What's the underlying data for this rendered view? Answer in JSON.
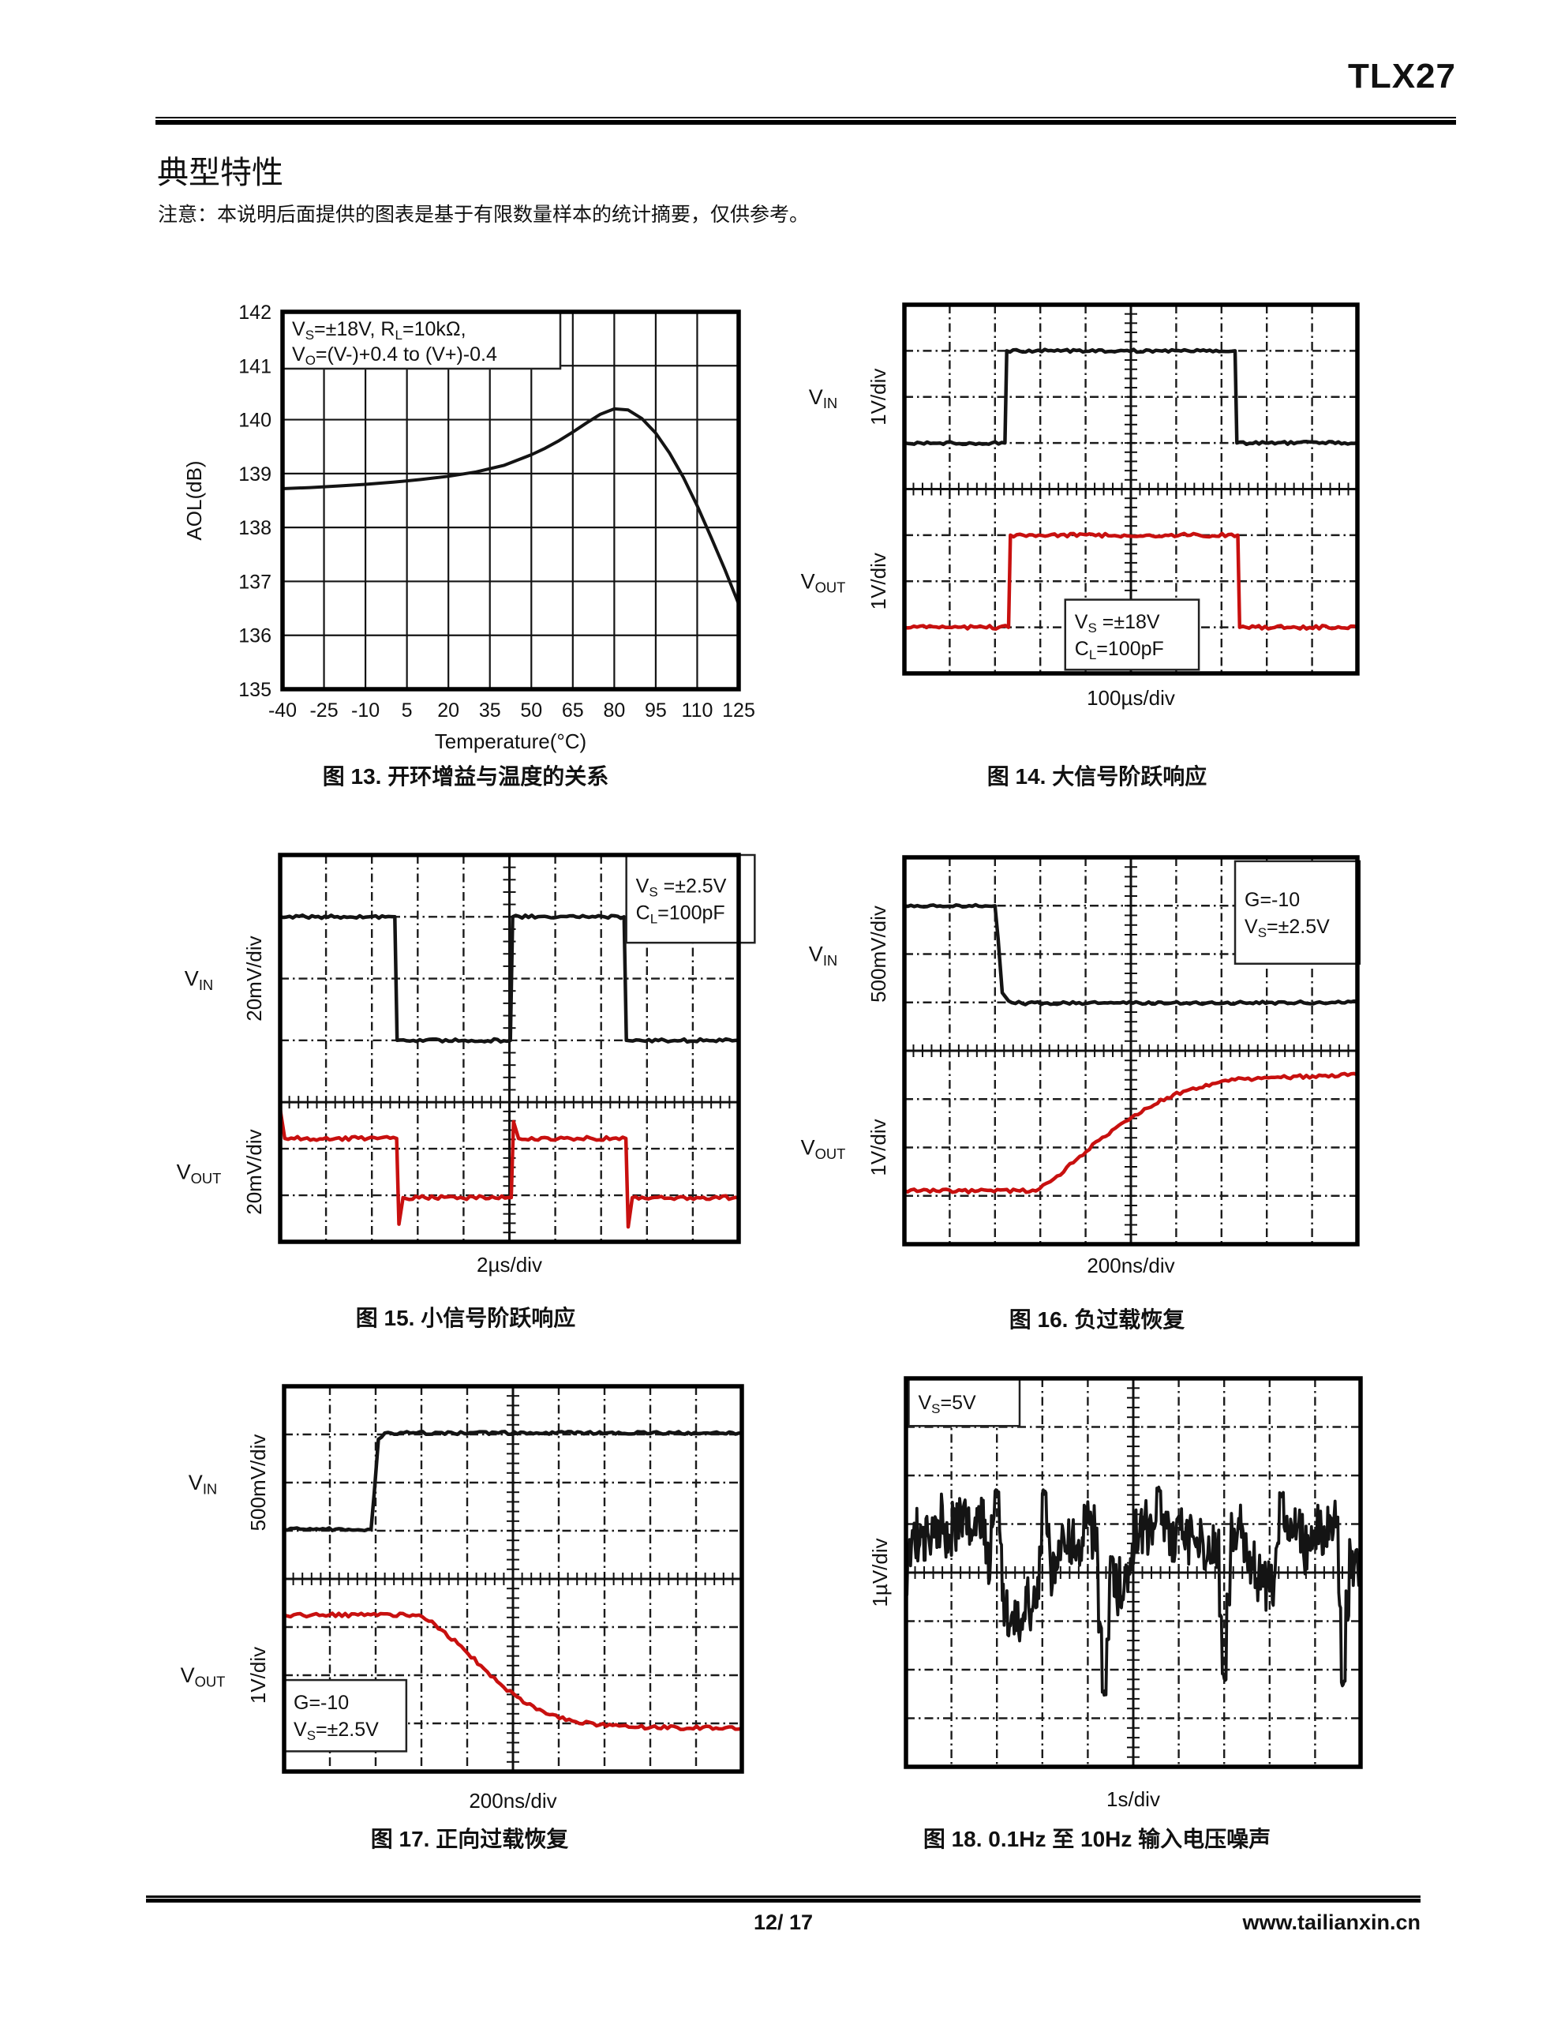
{
  "page": {
    "doc_id": "TLX27",
    "section_title": "典型特性",
    "note": "注意：本说明后面提供的图表是基于有限数量样本的统计摘要，仅供参考。",
    "footer": {
      "page_no": "12/ 17",
      "website": "www.tailianxin.cn"
    }
  },
  "colors": {
    "trace_black": "#141414",
    "trace_red": "#c8100f",
    "grid": "#1b1b1b",
    "accent_rule": "#000000"
  },
  "chart_data": [
    {
      "id": "fig13",
      "type": "line",
      "title": "图 13. 开环增益与温度的关系",
      "xlabel": "Temperature(°C)",
      "ylabel": "AOL(dB)",
      "xlim": [
        -40,
        125
      ],
      "ylim": [
        135,
        142
      ],
      "xticks": [
        -40,
        -25,
        -10,
        5,
        20,
        35,
        50,
        65,
        80,
        95,
        110,
        125
      ],
      "yticks": [
        135,
        136,
        137,
        138,
        139,
        140,
        141,
        142
      ],
      "grid": "solid",
      "annotation": {
        "lines": [
          "V|S|=±18V, R|L|=10kΩ,",
          "V|O|=(V-)+0.4 to (V+)-0.4"
        ],
        "pos": "top-left"
      },
      "series": [
        {
          "name": "AOL",
          "color": "black",
          "x": [
            -40,
            -30,
            -20,
            -10,
            0,
            10,
            20,
            30,
            40,
            50,
            55,
            60,
            65,
            70,
            75,
            80,
            85,
            90,
            95,
            100,
            105,
            110,
            115,
            120,
            125
          ],
          "y": [
            138.72,
            138.74,
            138.77,
            138.8,
            138.84,
            138.89,
            138.95,
            139.03,
            139.15,
            139.35,
            139.47,
            139.61,
            139.77,
            139.94,
            140.1,
            140.2,
            140.18,
            140.02,
            139.75,
            139.38,
            138.93,
            138.4,
            137.82,
            137.22,
            136.58
          ]
        }
      ]
    },
    {
      "id": "fig14",
      "type": "scope",
      "title": "图 14. 大信号阶跃响应",
      "xlabel": "100µs/div",
      "cols": 10,
      "center_col": 5,
      "row_map": {
        "top": 4,
        "bottom": 4,
        "boundary_frac": 0.5
      },
      "labels": [
        {
          "name": "V|IN|",
          "scale": "1V/div",
          "section": "top"
        },
        {
          "name": "V|OUT|",
          "scale": "1V/div",
          "section": "bottom"
        }
      ],
      "annotation": {
        "lines": [
          "V|S| =±18V",
          "C|L|=100pF"
        ],
        "x": [
          3.55,
          6.5
        ],
        "y": [
          6.4,
          7.92
        ]
      },
      "series": [
        {
          "color": "black",
          "noise": 1.8,
          "points": [
            [
              0,
              3
            ],
            [
              2.22,
              3
            ],
            [
              2.26,
              1
            ],
            [
              7.3,
              1
            ],
            [
              7.34,
              3
            ],
            [
              10,
              3
            ]
          ]
        },
        {
          "color": "red",
          "noise": 2.2,
          "points": [
            [
              0,
              7
            ],
            [
              2.3,
              7
            ],
            [
              2.34,
              5
            ],
            [
              7.36,
              5
            ],
            [
              7.4,
              7
            ],
            [
              10,
              7
            ]
          ]
        }
      ]
    },
    {
      "id": "fig15",
      "type": "scope",
      "title": "图 15. 小信号阶跃响应",
      "xlabel": "2µs/div",
      "cols": 10,
      "center_col": 5,
      "row_map": {
        "top": 4,
        "bottom": 3,
        "boundary_frac": 0.639
      },
      "labels": [
        {
          "name": "V|IN|",
          "scale": "20mV/div",
          "section": "top"
        },
        {
          "name": "V|OUT|",
          "scale": "20mV/div",
          "section": "bottom"
        }
      ],
      "annotation": {
        "lines": [
          "V|S| =±2.5V",
          "C|L|=100pF"
        ],
        "x": [
          7.55,
          10.35
        ],
        "y": [
          0,
          1.42
        ]
      },
      "series": [
        {
          "color": "black",
          "noise": 2.0,
          "points": [
            [
              0,
              1
            ],
            [
              2.5,
              1
            ],
            [
              2.55,
              3
            ],
            [
              5.02,
              3
            ],
            [
              5.07,
              1
            ],
            [
              7.5,
              1
            ],
            [
              7.55,
              3
            ],
            [
              10,
              3
            ]
          ]
        },
        {
          "color": "red",
          "noise": 2.4,
          "points": [
            [
              0,
              4.15
            ],
            [
              0.1,
              4.78
            ],
            [
              2.54,
              4.78
            ],
            [
              2.59,
              6.62
            ],
            [
              2.68,
              6.05
            ],
            [
              5.04,
              6.05
            ],
            [
              5.09,
              4.42
            ],
            [
              5.2,
              4.78
            ],
            [
              7.54,
              4.78
            ],
            [
              7.59,
              6.68
            ],
            [
              7.68,
              6.05
            ],
            [
              10,
              6.05
            ]
          ]
        }
      ]
    },
    {
      "id": "fig16",
      "type": "scope",
      "title": "图 16. 负过载恢复",
      "xlabel": "200ns/div",
      "cols": 10,
      "center_col": 5,
      "row_map": {
        "top": 4,
        "bottom": 4,
        "boundary_frac": 0.5
      },
      "labels": [
        {
          "name": "V|IN|",
          "scale": "500mV/div",
          "section": "top"
        },
        {
          "name": "V|OUT|",
          "scale": "1V/div",
          "section": "bottom"
        }
      ],
      "annotation": {
        "lines": [
          "G=-10",
          "V|S|=±2.5V"
        ],
        "x": [
          7.3,
          10.05
        ],
        "y": [
          0.08,
          2.2
        ]
      },
      "series": [
        {
          "color": "black",
          "noise": 1.8,
          "points": [
            [
              0,
              1
            ],
            [
              2.0,
              1
            ],
            [
              2.07,
              1.7
            ],
            [
              2.16,
              2.8
            ],
            [
              2.3,
              2.97
            ],
            [
              2.6,
              3.02
            ],
            [
              10,
              3.0
            ]
          ]
        },
        {
          "color": "red",
          "noise": 2.2,
          "points": [
            [
              0,
              6.9
            ],
            [
              2.9,
              6.9
            ],
            [
              3.3,
              6.65
            ],
            [
              3.8,
              6.25
            ],
            [
              4.3,
              5.85
            ],
            [
              4.8,
              5.5
            ],
            [
              5.3,
              5.2
            ],
            [
              5.8,
              4.97
            ],
            [
              6.3,
              4.8
            ],
            [
              6.8,
              4.68
            ],
            [
              7.3,
              4.6
            ],
            [
              8.1,
              4.55
            ],
            [
              10,
              4.5
            ]
          ]
        }
      ]
    },
    {
      "id": "fig17",
      "type": "scope",
      "title": "图 17. 正向过载恢复",
      "xlabel": "200ns/div",
      "cols": 10,
      "center_col": 5,
      "row_map": {
        "top": 4,
        "bottom": 4,
        "boundary_frac": 0.5
      },
      "labels": [
        {
          "name": "V|IN|",
          "scale": "500mV/div",
          "section": "top"
        },
        {
          "name": "V|OUT|",
          "scale": "1V/div",
          "section": "bottom"
        }
      ],
      "annotation": {
        "lines": [
          "G=-10",
          "V|S|=±2.5V"
        ],
        "x": [
          0.0,
          2.67
        ],
        "y": [
          6.1,
          7.58
        ]
      },
      "series": [
        {
          "color": "black",
          "noise": 1.8,
          "points": [
            [
              0,
              2.97
            ],
            [
              1.9,
              2.97
            ],
            [
              1.97,
              2.2
            ],
            [
              2.06,
              1.1
            ],
            [
              2.2,
              0.97
            ],
            [
              10,
              0.97
            ]
          ]
        },
        {
          "color": "red",
          "noise": 2.2,
          "points": [
            [
              0,
              4.75
            ],
            [
              2.95,
              4.75
            ],
            [
              3.3,
              4.95
            ],
            [
              3.8,
              5.35
            ],
            [
              4.3,
              5.8
            ],
            [
              4.8,
              6.25
            ],
            [
              5.3,
              6.6
            ],
            [
              5.8,
              6.82
            ],
            [
              6.3,
              6.95
            ],
            [
              6.9,
              7.03
            ],
            [
              7.6,
              7.08
            ],
            [
              10,
              7.1
            ]
          ]
        }
      ]
    },
    {
      "id": "fig18",
      "type": "scope-noise",
      "title": "图 18. 0.1Hz 至 10Hz 输入电压噪声",
      "xlabel": "1s/div",
      "cols": 10,
      "center_col": 5,
      "row_map": {
        "top": 4,
        "bottom": 4,
        "boundary_frac": 0.5
      },
      "labels": [
        {
          "name": null,
          "scale": "1µV/div",
          "section": "full"
        }
      ],
      "annotation": {
        "lines": [
          "V|S|=5V"
        ],
        "x": [
          0.06,
          2.5
        ],
        "y": [
          0,
          0.98
        ]
      },
      "noise": {
        "seed": 20240001,
        "center_div": 3.9,
        "walk": 0.22,
        "band": 1.05,
        "jitter": 0.5,
        "clamp": [
          2.15,
          6.5
        ],
        "spikes": [
          [
            2.0,
            2.3
          ],
          [
            3.05,
            2.35
          ],
          [
            4.35,
            6.45
          ],
          [
            5.55,
            2.3
          ],
          [
            7.0,
            6.15
          ],
          [
            8.25,
            2.4
          ],
          [
            9.62,
            6.28
          ]
        ]
      },
      "series": [
        {
          "color": "black",
          "noise": 0
        }
      ]
    }
  ]
}
